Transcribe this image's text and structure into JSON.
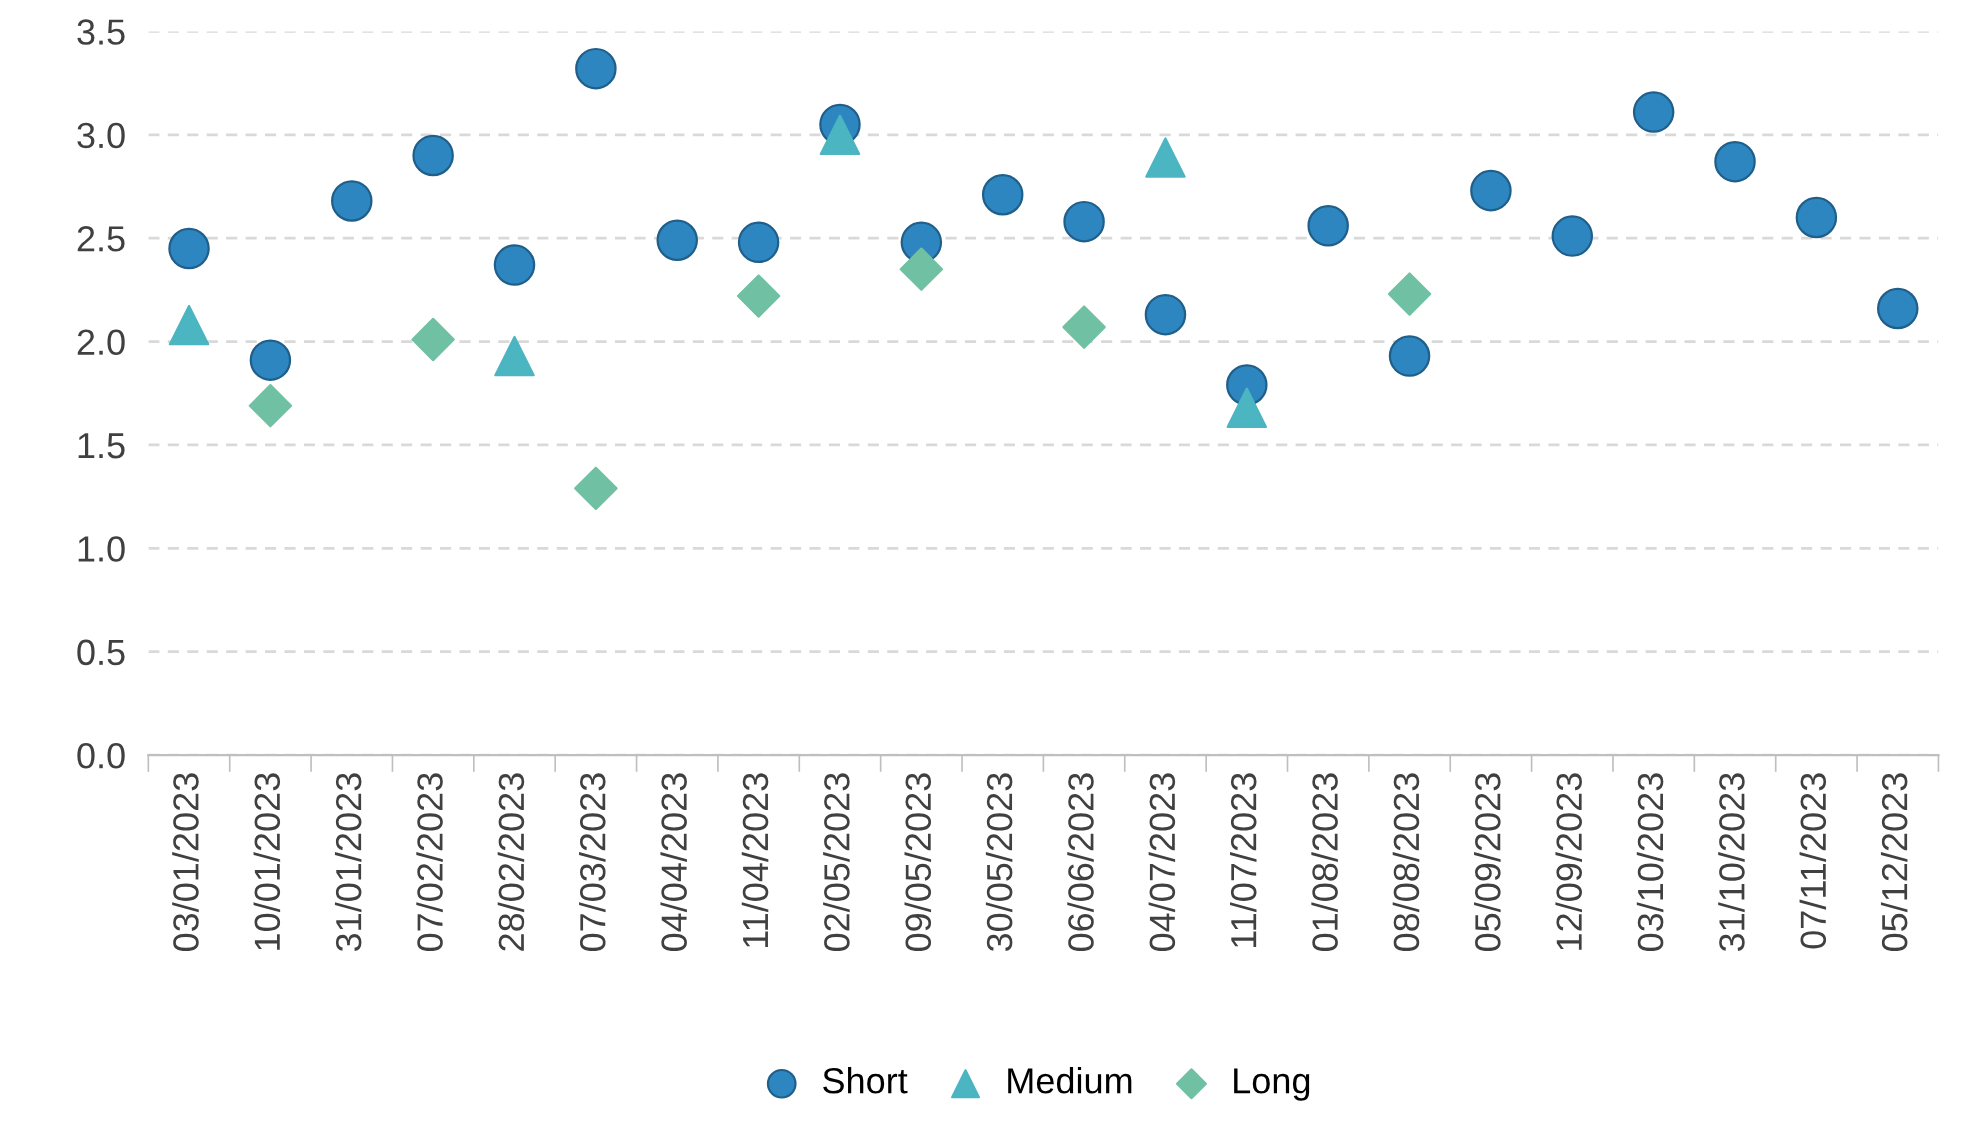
{
  "chart_data": {
    "type": "scatter",
    "categories": [
      "03/01/2023",
      "10/01/2023",
      "31/01/2023",
      "07/02/2023",
      "28/02/2023",
      "07/03/2023",
      "04/04/2023",
      "11/04/2023",
      "02/05/2023",
      "09/05/2023",
      "30/05/2023",
      "06/06/2023",
      "04/07/2023",
      "11/07/2023",
      "01/08/2023",
      "08/08/2023",
      "05/09/2023",
      "12/09/2023",
      "03/10/2023",
      "31/10/2023",
      "07/11/2023",
      "05/12/2023"
    ],
    "series": [
      {
        "name": "Short",
        "color": "#2e86c1",
        "marker": "circle",
        "values": [
          2.45,
          1.91,
          2.68,
          2.9,
          2.37,
          3.32,
          2.49,
          2.48,
          3.05,
          2.48,
          2.71,
          2.58,
          2.13,
          1.79,
          2.56,
          1.93,
          2.73,
          2.51,
          3.11,
          2.87,
          2.6,
          2.16
        ]
      },
      {
        "name": "Medium",
        "color": "#4bb5c1",
        "marker": "triangle",
        "values": [
          2.08,
          null,
          null,
          null,
          1.93,
          null,
          null,
          null,
          3.0,
          null,
          null,
          null,
          2.89,
          1.68,
          null,
          null,
          null,
          null,
          null,
          null,
          null,
          null
        ]
      },
      {
        "name": "Long",
        "color": "#70c1a3",
        "marker": "diamond",
        "values": [
          null,
          1.69,
          null,
          2.01,
          null,
          1.29,
          null,
          2.22,
          null,
          2.35,
          null,
          2.07,
          null,
          null,
          null,
          2.23,
          null,
          null,
          null,
          null,
          null,
          null
        ]
      }
    ],
    "ylim": [
      0,
      3.5
    ],
    "yticks": [
      {
        "value": 0,
        "label": "0.0"
      },
      {
        "value": 0.5,
        "label": "0.5"
      },
      {
        "value": 1,
        "label": "1.0"
      },
      {
        "value": 1.5,
        "label": "1.5"
      },
      {
        "value": 2,
        "label": "2.0"
      },
      {
        "value": 2.5,
        "label": "2.5"
      },
      {
        "value": 3,
        "label": "3.0"
      },
      {
        "value": 3.5,
        "label": "3.5"
      }
    ],
    "grid": "y",
    "legend": "bottom"
  }
}
